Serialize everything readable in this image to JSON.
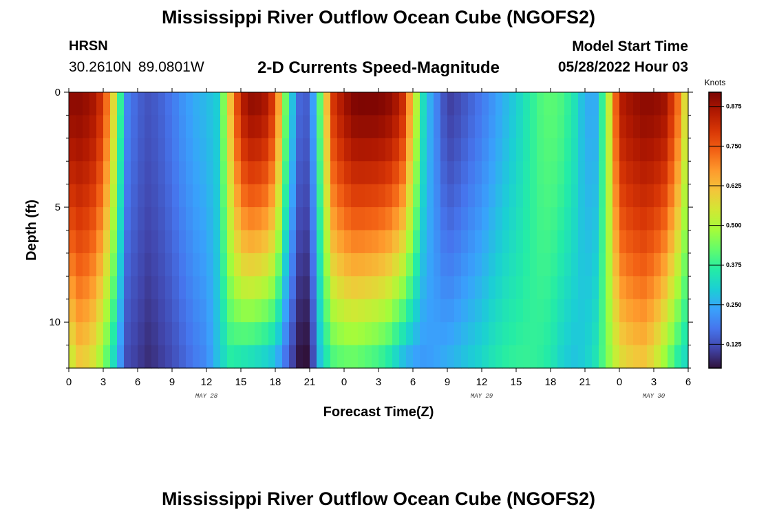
{
  "title": "Mississippi River Outflow Ocean Cube (NGOFS2)",
  "bottom_title": "Mississippi River Outflow Ocean Cube (NGOFS2)",
  "station": {
    "name": "HRSN",
    "coords": "30.2610N  89.0801W"
  },
  "subtitle": "2-D Currents Speed-Magnitude",
  "model_start": {
    "label": "Model Start Time",
    "value": "05/28/2022 Hour 03"
  },
  "colors": {
    "colormap": [
      "#30123b",
      "#4145ab",
      "#4675ed",
      "#39a2fc",
      "#1bcfd4",
      "#24eca6",
      "#61fc6c",
      "#a4fc3b",
      "#d1e834",
      "#f3c63a",
      "#fe9b2d",
      "#f36315",
      "#d93806",
      "#b11901",
      "#7a0402"
    ]
  },
  "chart_data": {
    "type": "heatmap",
    "title": "2-D Currents Speed-Magnitude",
    "xlabel": "Forecast Time(Z)",
    "ylabel": "Depth (ft)",
    "x_hours_range": [
      0,
      54
    ],
    "x_tick_labels": [
      "0",
      "3",
      "6",
      "9",
      "12",
      "15",
      "18",
      "21",
      "0",
      "3",
      "6",
      "9",
      "12",
      "15",
      "18",
      "21",
      "0",
      "3",
      "6"
    ],
    "x_tick_hours": [
      0,
      3,
      6,
      9,
      12,
      15,
      18,
      21,
      24,
      27,
      30,
      33,
      36,
      39,
      42,
      45,
      48,
      51,
      54
    ],
    "day_labels": [
      {
        "text": "MAY 28",
        "hour": 12
      },
      {
        "text": "MAY 29",
        "hour": 36
      },
      {
        "text": "MAY 30",
        "hour": 51
      }
    ],
    "ylim": [
      0,
      12
    ],
    "y_ticks": [
      0,
      5,
      10
    ],
    "y_tick_labels": [
      "0",
      "5",
      "10"
    ],
    "colorbar": {
      "title": "Knots",
      "min": 0.05,
      "max": 0.92,
      "ticks": [
        0.125,
        0.25,
        0.375,
        0.5,
        0.625,
        0.75,
        0.875
      ],
      "tick_labels": [
        "0.125",
        "0.250",
        "0.375",
        "0.500",
        "0.625",
        "0.750",
        "0.875"
      ]
    },
    "speed_profile_surface_by_hour": [
      0.9,
      0.9,
      0.88,
      0.8,
      0.55,
      0.2,
      0.15,
      0.13,
      0.15,
      0.18,
      0.22,
      0.25,
      0.27,
      0.3,
      0.6,
      0.85,
      0.9,
      0.88,
      0.78,
      0.4,
      0.16,
      0.14,
      0.45,
      0.8,
      0.88,
      0.92,
      0.92,
      0.92,
      0.9,
      0.85,
      0.6,
      0.3,
      0.2,
      0.1,
      0.12,
      0.15,
      0.18,
      0.22,
      0.26,
      0.3,
      0.35,
      0.4,
      0.42,
      0.4,
      0.35,
      0.25,
      0.25,
      0.5,
      0.85,
      0.88,
      0.9,
      0.9,
      0.88,
      0.75,
      0.5
    ],
    "speed_profile_bottom_by_hour": [
      0.5,
      0.6,
      0.55,
      0.45,
      0.3,
      0.12,
      0.1,
      0.08,
      0.1,
      0.12,
      0.15,
      0.18,
      0.2,
      0.28,
      0.35,
      0.32,
      0.3,
      0.28,
      0.25,
      0.15,
      0.05,
      0.04,
      0.3,
      0.38,
      0.4,
      0.4,
      0.38,
      0.36,
      0.32,
      0.25,
      0.22,
      0.22,
      0.24,
      0.26,
      0.28,
      0.3,
      0.32,
      0.35,
      0.37,
      0.38,
      0.38,
      0.37,
      0.35,
      0.3,
      0.28,
      0.3,
      0.35,
      0.45,
      0.55,
      0.58,
      0.6,
      0.55,
      0.45,
      0.35,
      0.3
    ]
  }
}
